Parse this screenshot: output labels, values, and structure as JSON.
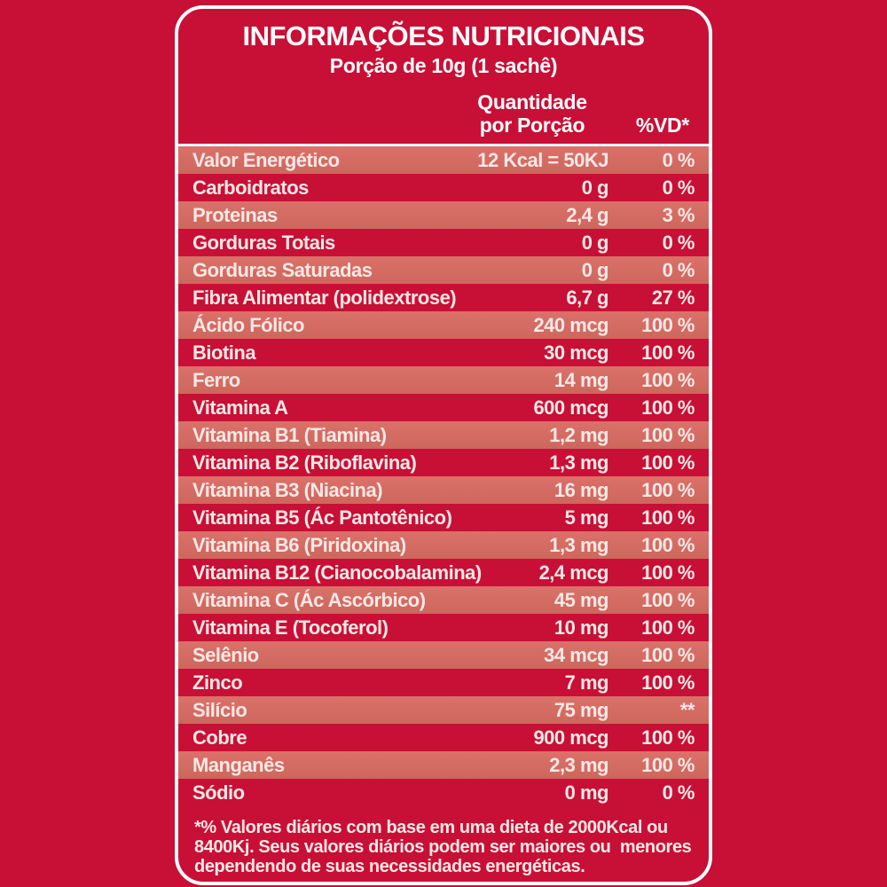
{
  "label": {
    "title": "INFORMAÇÕES NUTRICIONAIS",
    "subtitle": "Porção de 10g (1 sachê)",
    "columns": {
      "quantity_line1": "Quantidade",
      "quantity_line2": "por Porção",
      "dv": "%VD*"
    },
    "rows": [
      {
        "name": "Valor Energético",
        "qty": "12 Kcal = 50KJ",
        "dv": "0 %"
      },
      {
        "name": "Carboidratos",
        "qty": "0 g",
        "dv": "0 %"
      },
      {
        "name": "Proteinas",
        "qty": "2,4 g",
        "dv": "3 %"
      },
      {
        "name": "Gorduras Totais",
        "qty": "0 g",
        "dv": "0 %"
      },
      {
        "name": "Gorduras Saturadas",
        "qty": "0 g",
        "dv": "0 %"
      },
      {
        "name": "Fibra Alimentar (polidextrose)",
        "qty": "6,7 g",
        "dv": "27 %"
      },
      {
        "name": "Ácido Fólico",
        "qty": "240 mcg",
        "dv": "100 %"
      },
      {
        "name": "Biotina",
        "qty": "30 mcg",
        "dv": "100 %"
      },
      {
        "name": "Ferro",
        "qty": "14 mg",
        "dv": "100 %"
      },
      {
        "name": "Vitamina A",
        "qty": "600 mcg",
        "dv": "100 %"
      },
      {
        "name": "Vitamina B1 (Tiamina)",
        "qty": "1,2 mg",
        "dv": "100 %"
      },
      {
        "name": "Vitamina B2 (Riboflavina)",
        "qty": "1,3 mg",
        "dv": "100 %"
      },
      {
        "name": "Vitamina B3 (Niacina)",
        "qty": "16 mg",
        "dv": "100 %"
      },
      {
        "name": "Vitamina B5 (Ác Pantotênico)",
        "qty": "5 mg",
        "dv": "100 %"
      },
      {
        "name": "Vitamina B6 (Piridoxina)",
        "qty": "1,3 mg",
        "dv": "100 %"
      },
      {
        "name": "Vitamina B12 (Cianocobalamina)",
        "qty": "2,4 mcg",
        "dv": "100 %"
      },
      {
        "name": "Vitamina C (Ác Ascórbico)",
        "qty": "45 mg",
        "dv": "100 %"
      },
      {
        "name": "Vitamina E (Tocoferol)",
        "qty": "10 mg",
        "dv": "100 %"
      },
      {
        "name": "Selênio",
        "qty": "34 mcg",
        "dv": "100 %"
      },
      {
        "name": "Zinco",
        "qty": "7 mg",
        "dv": "100 %"
      },
      {
        "name": "Silício",
        "qty": "75 mg",
        "dv": "**"
      },
      {
        "name": "Cobre",
        "qty": "900 mcg",
        "dv": "100 %"
      },
      {
        "name": "Manganês",
        "qty": "2,3 mg",
        "dv": "100 %"
      },
      {
        "name": "Sódio",
        "qty": "0 mg",
        "dv": "0 %"
      }
    ],
    "footnote_lines": [
      "*% Valores diários com base em uma dieta de 2000Kcal ou",
      "8400Kj. Seus valores diários podem ser maiores ou  menores",
      "dependendo de suas necessidades energéticas."
    ],
    "colors": {
      "background": "#c80f36",
      "stripe_top": "#db716a",
      "stripe_bottom": "#cd675c",
      "border": "#ffffff",
      "text": "#fbe8e5",
      "heading": "#ffffff"
    }
  }
}
